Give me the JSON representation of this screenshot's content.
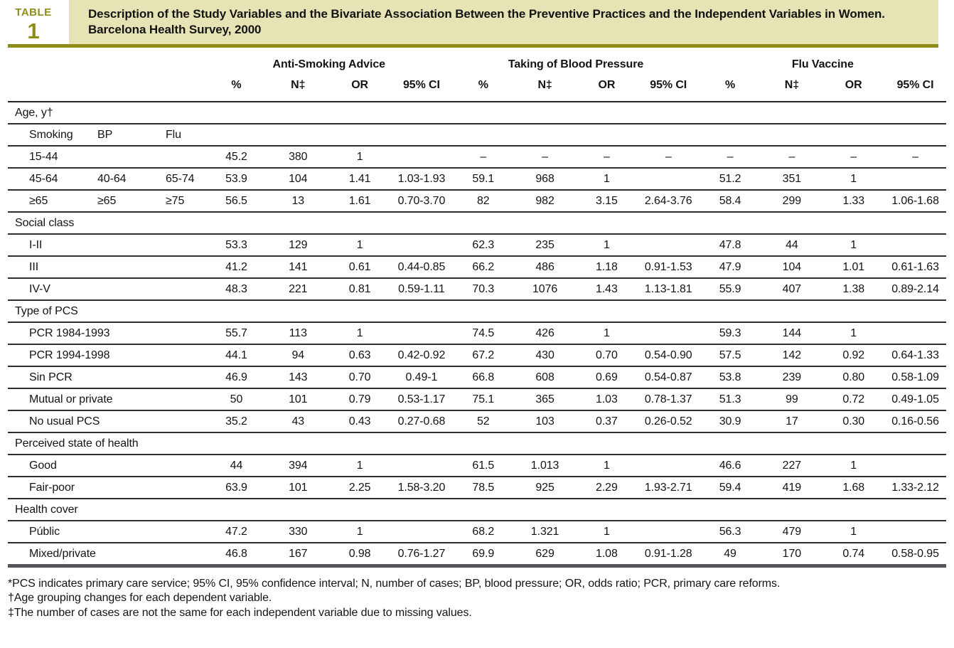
{
  "header": {
    "kicker": "TABLE",
    "number": "1",
    "title": "Description of the Study Variables and the Bivariate Association Between the Preventive Practices and the Independent Variables in Women. Barcelona Health Survey, 2000"
  },
  "table": {
    "groups": [
      "Anti-Smoking Advice",
      "Taking of Blood Pressure",
      "Flu Vaccine"
    ],
    "columns": [
      "%",
      "N‡",
      "OR",
      "95% CI",
      "%",
      "N‡",
      "OR",
      "95% CI",
      "%",
      "N‡",
      "OR",
      "95% CI"
    ],
    "rows": [
      {
        "type": "section",
        "label": "Age, y†"
      },
      {
        "type": "age",
        "labels": [
          "Smoking",
          "BP",
          "Flu"
        ],
        "values": [
          "",
          "",
          "",
          "",
          "",
          "",
          "",
          "",
          "",
          "",
          "",
          ""
        ]
      },
      {
        "type": "age",
        "labels": [
          "15-44"
        ],
        "values": [
          "45.2",
          "380",
          "1",
          "",
          "–",
          "–",
          "–",
          "–",
          "–",
          "–",
          "–",
          "–"
        ]
      },
      {
        "type": "age",
        "labels": [
          "45-64",
          "40-64",
          "65-74"
        ],
        "values": [
          "53.9",
          "104",
          "1.41",
          "1.03-1.93",
          "59.1",
          "968",
          "1",
          "",
          "51.2",
          "351",
          "1",
          ""
        ]
      },
      {
        "type": "age",
        "labels": [
          "≥65",
          "≥65",
          "≥75"
        ],
        "values": [
          "56.5",
          "13",
          "1.61",
          "0.70-3.70",
          "82",
          "982",
          "3.15",
          "2.64-3.76",
          "58.4",
          "299",
          "1.33",
          "1.06-1.68"
        ]
      },
      {
        "type": "section",
        "label": "Social class"
      },
      {
        "type": "item",
        "label": "I-II",
        "values": [
          "53.3",
          "129",
          "1",
          "",
          "62.3",
          "235",
          "1",
          "",
          "47.8",
          "44",
          "1",
          ""
        ]
      },
      {
        "type": "item",
        "label": "III",
        "values": [
          "41.2",
          "141",
          "0.61",
          "0.44-0.85",
          "66.2",
          "486",
          "1.18",
          "0.91-1.53",
          "47.9",
          "104",
          "1.01",
          "0.61-1.63"
        ]
      },
      {
        "type": "item",
        "label": "IV-V",
        "values": [
          "48.3",
          "221",
          "0.81",
          "0.59-1.11",
          "70.3",
          "1076",
          "1.43",
          "1.13-1.81",
          "55.9",
          "407",
          "1.38",
          "0.89-2.14"
        ]
      },
      {
        "type": "section",
        "label": "Type of PCS"
      },
      {
        "type": "item",
        "label": "PCR 1984-1993",
        "values": [
          "55.7",
          "113",
          "1",
          "",
          "74.5",
          "426",
          "1",
          "",
          "59.3",
          "144",
          "1",
          ""
        ]
      },
      {
        "type": "item",
        "label": "PCR 1994-1998",
        "values": [
          "44.1",
          "94",
          "0.63",
          "0.42-0.92",
          "67.2",
          "430",
          "0.70",
          "0.54-0.90",
          "57.5",
          "142",
          "0.92",
          "0.64-1.33"
        ]
      },
      {
        "type": "item",
        "label": "Sin PCR",
        "values": [
          "46.9",
          "143",
          "0.70",
          "0.49-1",
          "66.8",
          "608",
          "0.69",
          "0.54-0.87",
          "53.8",
          "239",
          "0.80",
          "0.58-1.09"
        ]
      },
      {
        "type": "item",
        "label": "Mutual or private",
        "values": [
          "50",
          "101",
          "0.79",
          "0.53-1.17",
          "75.1",
          "365",
          "1.03",
          "0.78-1.37",
          "51.3",
          "99",
          "0.72",
          "0.49-1.05"
        ]
      },
      {
        "type": "item",
        "label": "No usual PCS",
        "values": [
          "35.2",
          "43",
          "0.43",
          "0.27-0.68",
          "52",
          "103",
          "0.37",
          "0.26-0.52",
          "30.9",
          "17",
          "0.30",
          "0.16-0.56"
        ]
      },
      {
        "type": "section",
        "label": "Perceived state of health"
      },
      {
        "type": "item",
        "label": "Good",
        "values": [
          "44",
          "394",
          "1",
          "",
          "61.5",
          "1.013",
          "1",
          "",
          "46.6",
          "227",
          "1",
          ""
        ]
      },
      {
        "type": "item",
        "label": "Fair-poor",
        "values": [
          "63.9",
          "101",
          "2.25",
          "1.58-3.20",
          "78.5",
          "925",
          "2.29",
          "1.93-2.71",
          "59.4",
          "419",
          "1.68",
          "1.33-2.12"
        ]
      },
      {
        "type": "section",
        "label": "Health cover"
      },
      {
        "type": "item",
        "label": "Públic",
        "values": [
          "47.2",
          "330",
          "1",
          "",
          "68.2",
          "1.321",
          "1",
          "",
          "56.3",
          "479",
          "1",
          ""
        ]
      },
      {
        "type": "item",
        "label": "Mixed/private",
        "values": [
          "46.8",
          "167",
          "0.98",
          "0.76-1.27",
          "69.9",
          "629",
          "1.08",
          "0.91-1.28",
          "49",
          "170",
          "0.74",
          "0.58-0.95"
        ]
      }
    ]
  },
  "footnotes": [
    "*PCS indicates primary care service; 95% CI, 95% confidence interval; N, number of cases; BP, blood pressure; OR, odds ratio; PCR, primary care reforms.",
    "†Age grouping changes for each dependent variable.",
    "‡The number of cases are not the same for each independent variable due to missing values."
  ],
  "colors": {
    "accent_olive": "#8e8e17",
    "banner_background": "#e6e3b4",
    "bottom_bar": "#56565a",
    "rule": "#2e2e2e"
  }
}
